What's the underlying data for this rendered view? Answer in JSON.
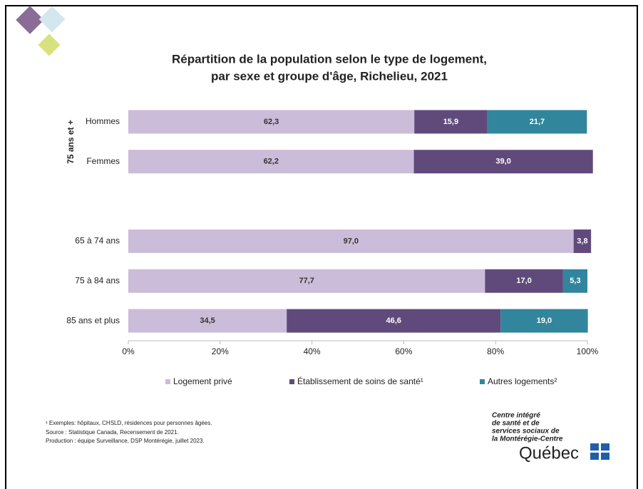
{
  "chart_data": {
    "type": "stacked-barh",
    "title": [
      "Répartition de la population selon le type de logement,",
      "par sexe et groupe d'âge, Richelieu, 2021"
    ],
    "group_label": "75 ans et +",
    "categories": [
      "Hommes",
      "Femmes",
      null,
      "65 à 74 ans",
      "75 à 84 ans",
      "85 ans et plus"
    ],
    "series": [
      {
        "name": "Logement privé",
        "color": "#cbbcd9",
        "label_color": "#333333",
        "values": [
          62.3,
          62.2,
          null,
          97.0,
          77.7,
          34.5
        ],
        "value_labels": [
          "62,3",
          "62,2",
          null,
          "97,0",
          "77,7",
          "34,5"
        ]
      },
      {
        "name": "Établissement de soins de santé¹",
        "color": "#604a7b",
        "label_color": "#ffffff",
        "values": [
          15.9,
          39.0,
          null,
          3.8,
          17.0,
          46.6
        ],
        "value_labels": [
          "15,9",
          "39,0",
          null,
          "3,8",
          "17,0",
          "46,6"
        ]
      },
      {
        "name": "Autres logements²",
        "color": "#31859c",
        "label_color": "#ffffff",
        "values": [
          21.7,
          null,
          null,
          null,
          5.3,
          19.0
        ],
        "value_labels": [
          "21,7",
          null,
          null,
          null,
          "5,3",
          "19,0"
        ]
      }
    ],
    "xlim": [
      0,
      100
    ],
    "xticks": [
      {
        "value": 0,
        "label": "0%"
      },
      {
        "value": 20,
        "label": "20%"
      },
      {
        "value": 40,
        "label": "40%"
      },
      {
        "value": 60,
        "label": "60%"
      },
      {
        "value": 80,
        "label": "80%"
      },
      {
        "value": 100,
        "label": "100%"
      }
    ],
    "legend": "bottom"
  },
  "footnotes": [
    "¹ Exemples: hôpitaux, CHSLD, résidences pour personnes âgées.",
    "Source : Statistique Canada, Recensement de 2021.",
    "Production : équipe Surveillance, DSP Montérégie, juillet 2023."
  ],
  "logo": {
    "lines": [
      "Centre intégré",
      "de santé et de",
      "services sociaux de",
      "la Montérégie-Centre"
    ],
    "name": "Québec"
  }
}
